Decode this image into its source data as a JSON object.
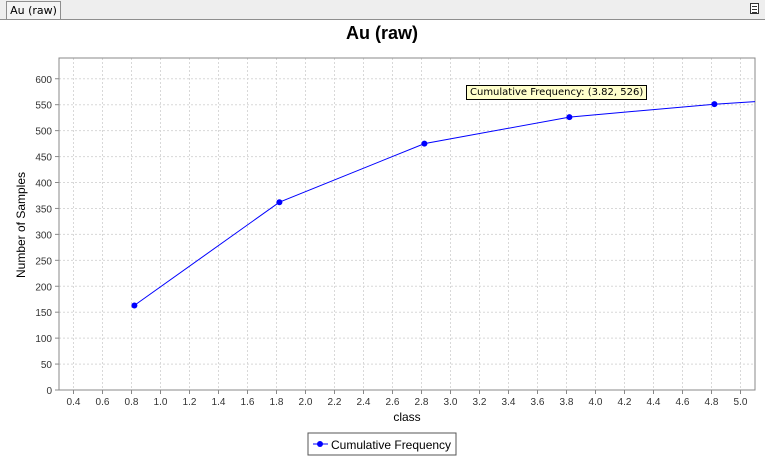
{
  "tab": {
    "label": "Au (raw)"
  },
  "tooltip": {
    "text": "Cumulative Frequency: (3.82, 526)"
  },
  "chart_data": {
    "type": "line",
    "title": "Au (raw)",
    "xlabel": "class",
    "ylabel": "Number of Samples",
    "xlim": [
      0.3,
      5.1
    ],
    "ylim": [
      0,
      640
    ],
    "xticks": [
      0.4,
      0.6,
      0.8,
      1.0,
      1.2,
      1.4,
      1.6,
      1.8,
      2.0,
      2.2,
      2.4,
      2.6,
      2.8,
      3.0,
      3.2,
      3.4,
      3.6,
      3.8,
      4.0,
      4.2,
      4.4,
      4.6,
      4.8,
      5.0
    ],
    "xtick_labels": [
      "0.4",
      "0.6",
      "0.8",
      "1.0",
      "1.2",
      "1.4",
      "1.6",
      "1.8",
      "2.0",
      "2.2",
      "2.4",
      "2.6",
      "2.8",
      "3.0",
      "3.2",
      "3.4",
      "3.6",
      "3.8",
      "4.0",
      "4.2",
      "4.4",
      "4.6",
      "4.8",
      "5.0"
    ],
    "yticks": [
      0,
      50,
      100,
      150,
      200,
      250,
      300,
      350,
      400,
      450,
      500,
      550,
      600
    ],
    "ytick_labels": [
      "0",
      "50",
      "100",
      "150",
      "200",
      "250",
      "300",
      "350",
      "400",
      "450",
      "500",
      "550",
      "600"
    ],
    "grid": true,
    "legend": "bottom-center",
    "series": [
      {
        "name": "Cumulative Frequency",
        "color": "#0000ff",
        "x": [
          0.82,
          1.82,
          2.82,
          3.82,
          4.82,
          5.1
        ],
        "y": [
          163,
          362,
          475,
          526,
          551,
          556
        ],
        "markers": [
          true,
          true,
          true,
          true,
          true,
          false
        ]
      }
    ]
  }
}
